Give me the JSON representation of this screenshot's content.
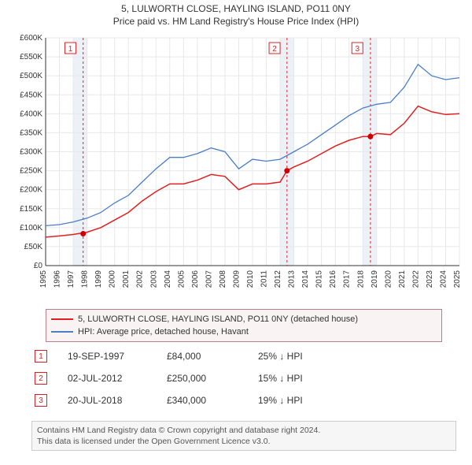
{
  "title_line1": "5, LULWORTH CLOSE, HAYLING ISLAND, PO11 0NY",
  "title_line2": "Price paid vs. HM Land Registry's House Price Index (HPI)",
  "chart": {
    "type": "line",
    "background_color": "#ffffff",
    "plot_background": "#ffffff",
    "grid_color": "#e8e8e8",
    "highlight_grid_color": "#d8e4f0",
    "axis_color": "#333333",
    "x": {
      "min": 1995,
      "max": 2025,
      "ticks": [
        1995,
        1996,
        1997,
        1998,
        1999,
        2000,
        2001,
        2002,
        2003,
        2004,
        2005,
        2006,
        2007,
        2008,
        2009,
        2010,
        2011,
        2012,
        2013,
        2014,
        2015,
        2016,
        2017,
        2018,
        2019,
        2020,
        2021,
        2022,
        2023,
        2024,
        2025
      ],
      "highlight_years": [
        1997,
        1998,
        2012,
        2013,
        2018,
        2019
      ],
      "label_fontsize": 10,
      "tick_rotation": -90
    },
    "y": {
      "min": 0,
      "max": 600000,
      "ticks": [
        0,
        50000,
        100000,
        150000,
        200000,
        250000,
        300000,
        350000,
        400000,
        450000,
        500000,
        550000,
        600000
      ],
      "tick_labels": [
        "£0",
        "£50K",
        "£100K",
        "£150K",
        "£200K",
        "£250K",
        "£300K",
        "£350K",
        "£400K",
        "£450K",
        "£500K",
        "£550K",
        "£600K"
      ],
      "label_fontsize": 10
    },
    "series": [
      {
        "id": "price_paid",
        "color": "#e02020",
        "line_width": 1.5,
        "yr": [
          1995,
          1996,
          1997,
          1998,
          1999,
          2000,
          2001,
          2002,
          2003,
          2004,
          2005,
          2006,
          2007,
          2008,
          2009,
          2010,
          2011,
          2012,
          2012.5,
          2013,
          2014,
          2015,
          2016,
          2017,
          2018,
          2018.55,
          2019,
          2020,
          2021,
          2022,
          2023,
          2024,
          2025
        ],
        "val": [
          75000,
          78000,
          82000,
          88000,
          100000,
          120000,
          140000,
          170000,
          195000,
          215000,
          215000,
          225000,
          240000,
          235000,
          200000,
          215000,
          215000,
          220000,
          250000,
          260000,
          275000,
          295000,
          315000,
          330000,
          340000,
          340000,
          348000,
          345000,
          375000,
          420000,
          405000,
          398000,
          400000
        ]
      },
      {
        "id": "hpi",
        "color": "#4a7ec8",
        "line_width": 1.3,
        "yr": [
          1995,
          1996,
          1997,
          1998,
          1999,
          2000,
          2001,
          2002,
          2003,
          2004,
          2005,
          2006,
          2007,
          2008,
          2009,
          2010,
          2011,
          2012,
          2013,
          2014,
          2015,
          2016,
          2017,
          2018,
          2019,
          2020,
          2021,
          2022,
          2023,
          2024,
          2025
        ],
        "val": [
          105000,
          108000,
          115000,
          125000,
          140000,
          165000,
          185000,
          220000,
          255000,
          285000,
          285000,
          295000,
          310000,
          300000,
          255000,
          280000,
          275000,
          280000,
          300000,
          320000,
          345000,
          370000,
          395000,
          415000,
          425000,
          430000,
          470000,
          530000,
          500000,
          490000,
          495000
        ]
      }
    ],
    "event_markers": [
      {
        "n": "1",
        "x": 1997.72,
        "y": 84000,
        "line_color": "#e02020",
        "dot_color": "#cc0000",
        "label_x": 1996.8,
        "label_y_top": true
      },
      {
        "n": "2",
        "x": 2012.5,
        "y": 250000,
        "line_color": "#e02020",
        "dot_color": "#cc0000",
        "label_x": 2011.6,
        "label_y_top": true
      },
      {
        "n": "3",
        "x": 2018.55,
        "y": 340000,
        "line_color": "#e02020",
        "dot_color": "#cc0000",
        "label_x": 2017.6,
        "label_y_top": true
      }
    ]
  },
  "legend": {
    "border_color": "#ba7e89",
    "background": "#faf3f4",
    "items": [
      {
        "color": "#e02020",
        "label": "5, LULWORTH CLOSE, HAYLING ISLAND, PO11 0NY (detached house)"
      },
      {
        "color": "#4a7ec8",
        "label": "HPI: Average price, detached house, Havant"
      }
    ]
  },
  "events": [
    {
      "n": "1",
      "date": "19-SEP-1997",
      "price": "£84,000",
      "delta": "25% ↓ HPI"
    },
    {
      "n": "2",
      "date": "02-JUL-2012",
      "price": "£250,000",
      "delta": "15% ↓ HPI"
    },
    {
      "n": "3",
      "date": "20-JUL-2018",
      "price": "£340,000",
      "delta": "19% ↓ HPI"
    }
  ],
  "footer_line1": "Contains HM Land Registry data © Crown copyright and database right 2024.",
  "footer_line2": "This data is licensed under the Open Government Licence v3.0."
}
